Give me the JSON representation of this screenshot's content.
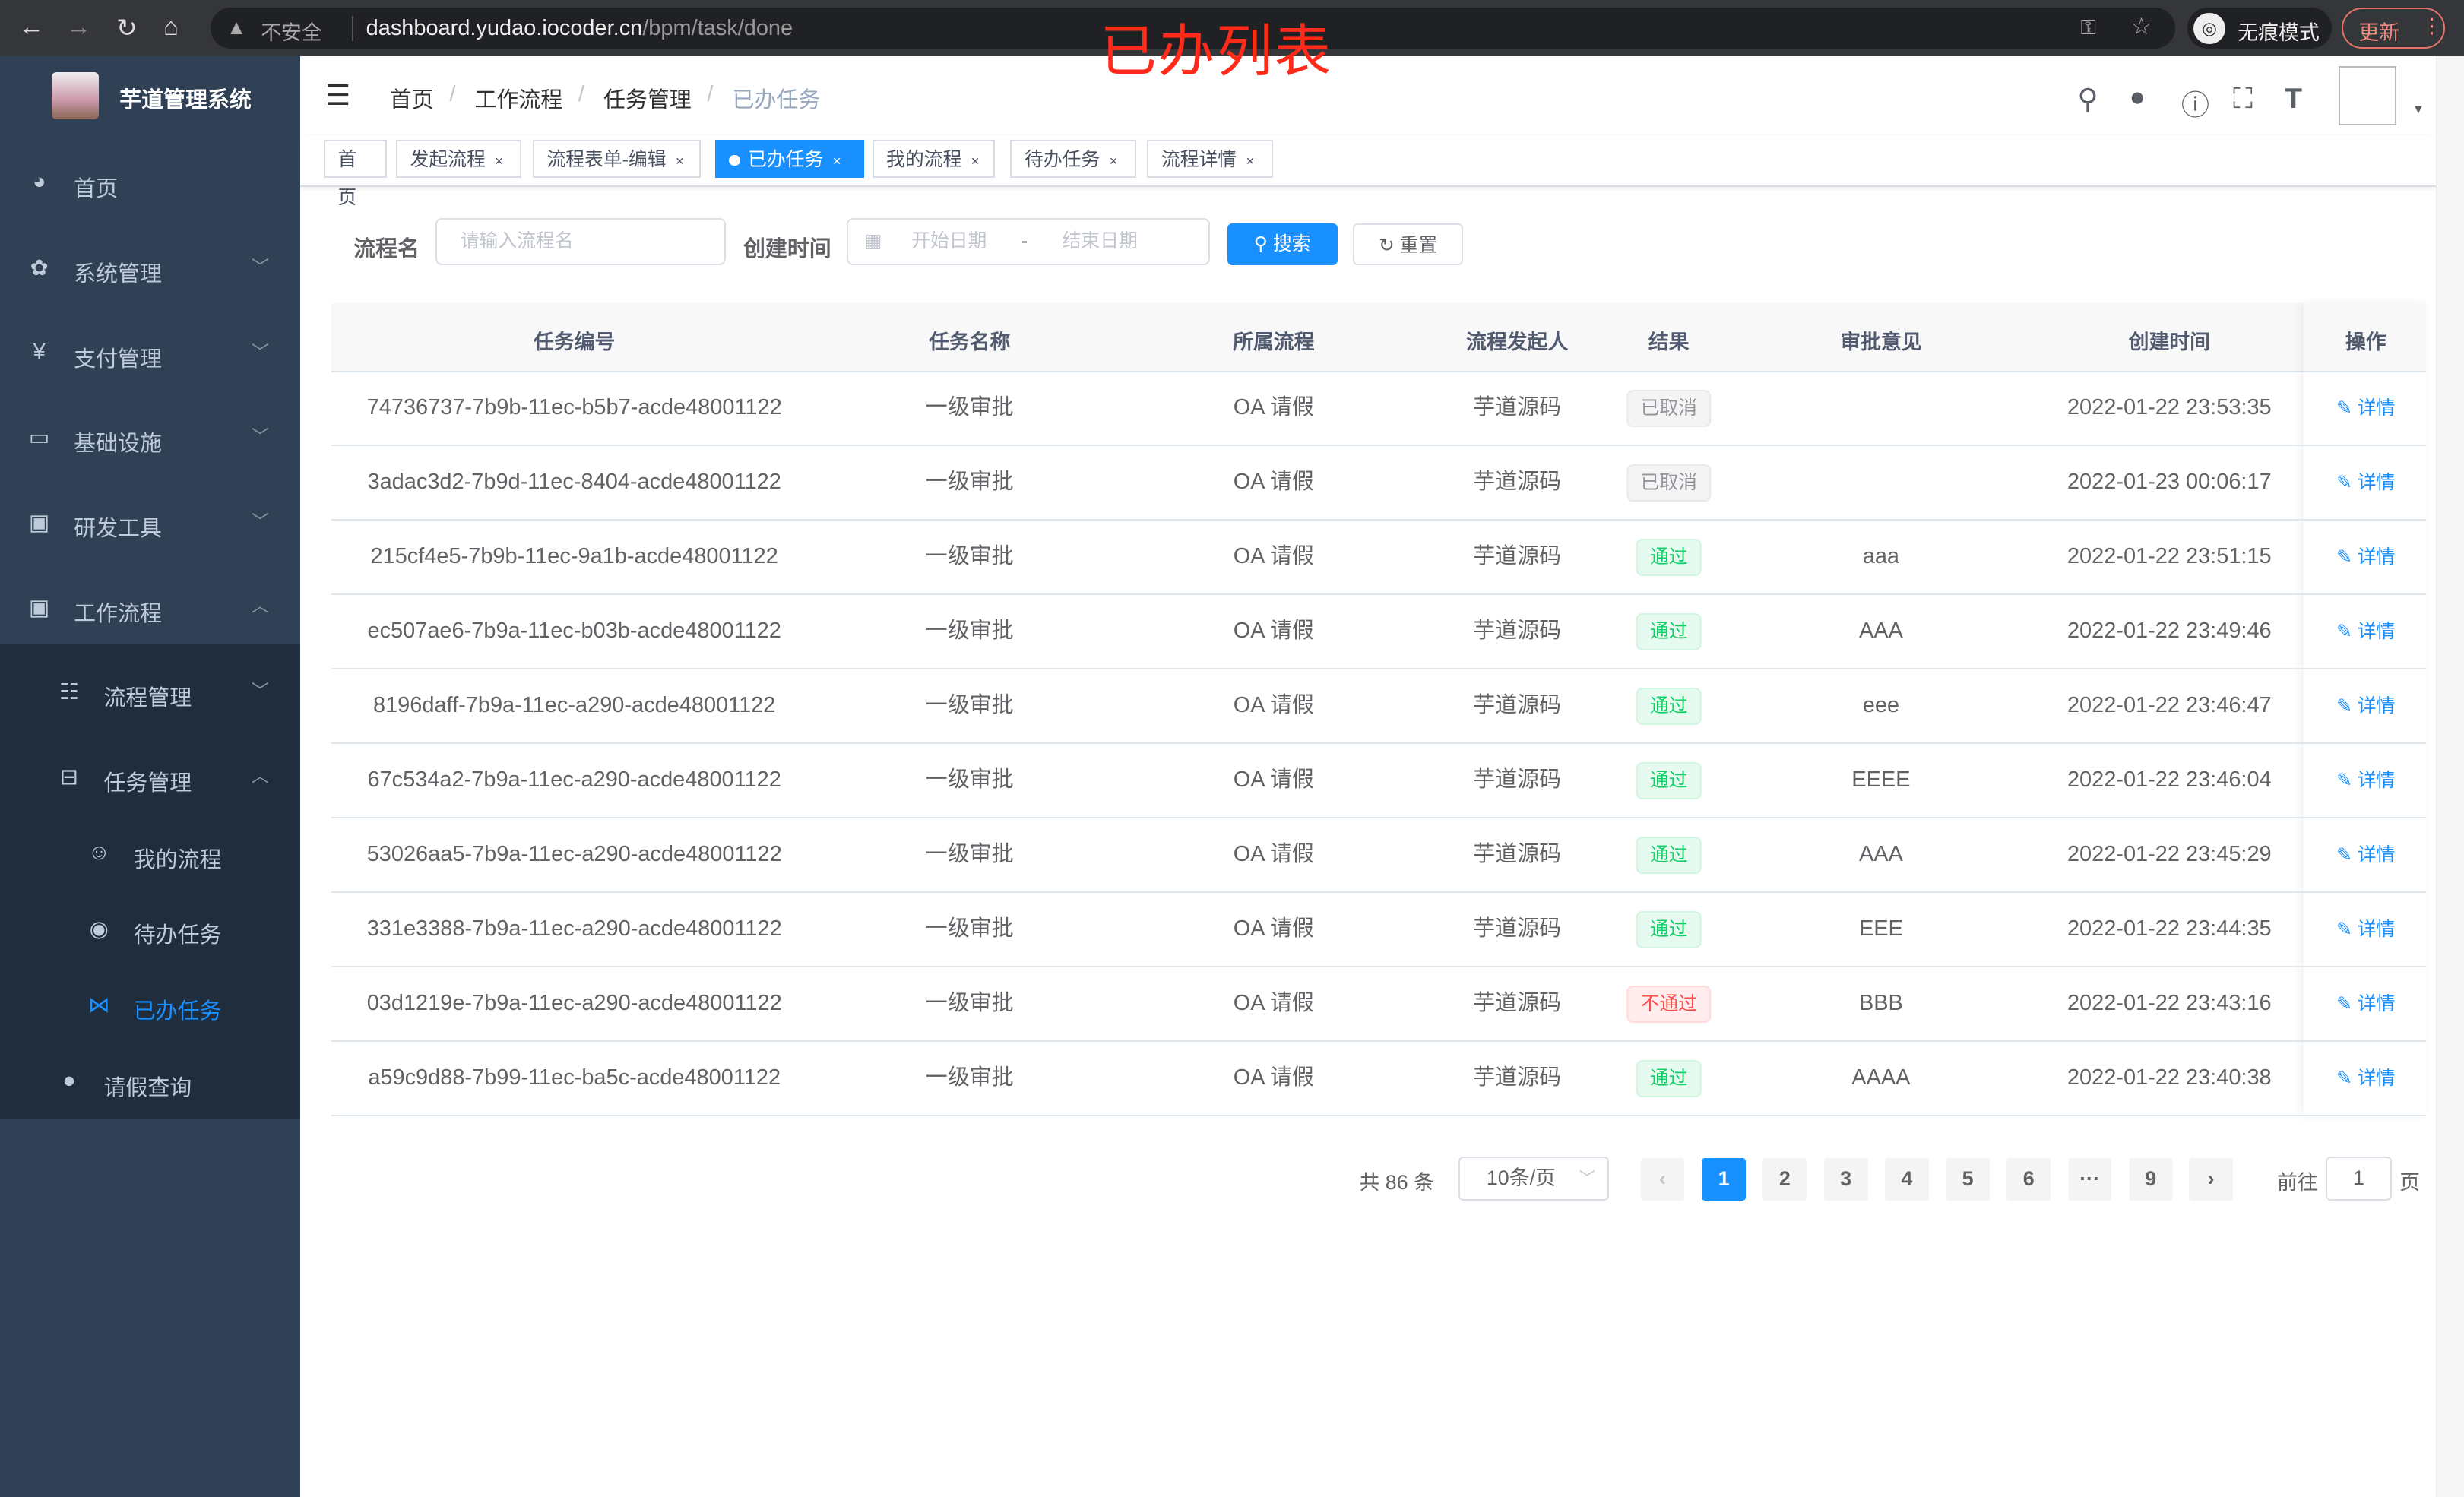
{
  "browser": {
    "insecure": "不安全",
    "url_host": "dashboard.yudao.iocoder.cn",
    "url_path": "/bpm/task/done",
    "incognito": "无痕模式",
    "update": "更新"
  },
  "overlay_title": "已办列表",
  "sidebar": {
    "title": "芋道管理系统",
    "items": [
      {
        "label": "首页",
        "icon": "dashboard-icon"
      },
      {
        "label": "系统管理",
        "icon": "gear-icon"
      },
      {
        "label": "支付管理",
        "icon": "yen-icon"
      },
      {
        "label": "基础设施",
        "icon": "monitor-icon"
      },
      {
        "label": "研发工具",
        "icon": "toolbox-icon"
      },
      {
        "label": "工作流程",
        "icon": "toolbox-icon"
      }
    ],
    "sub": [
      {
        "label": "流程管理",
        "icon": "list-icon"
      },
      {
        "label": "任务管理",
        "icon": "tree-icon"
      }
    ],
    "subsub": [
      {
        "label": "我的流程",
        "icon": "chat-icon"
      },
      {
        "label": "待办任务",
        "icon": "eye-icon"
      },
      {
        "label": "已办任务",
        "icon": "fish-icon"
      }
    ],
    "leave": {
      "label": "请假查询",
      "icon": "user-icon"
    }
  },
  "breadcrumb": [
    "首页",
    "工作流程",
    "任务管理",
    "已办任务"
  ],
  "tags": [
    "首页",
    "发起流程",
    "流程表单-编辑",
    "已办任务",
    "我的流程",
    "待办任务",
    "流程详情"
  ],
  "search": {
    "name_label": "流程名",
    "name_placeholder": "请输入流程名",
    "time_label": "创建时间",
    "start_placeholder": "开始日期",
    "range_sep": "-",
    "end_placeholder": "结束日期",
    "search_btn": "搜索",
    "reset_btn": "重置"
  },
  "table": {
    "headers": [
      "任务编号",
      "任务名称",
      "所属流程",
      "流程发起人",
      "结果",
      "审批意见",
      "创建时间",
      "操作"
    ],
    "rows": [
      [
        "74736737-7b9b-11ec-b5b7-acde48001122",
        "一级审批",
        "OA 请假",
        "芋道源码",
        "已取消",
        "",
        "2022-01-22 23:53:35",
        "详情"
      ],
      [
        "3adac3d2-7b9d-11ec-8404-acde48001122",
        "一级审批",
        "OA 请假",
        "芋道源码",
        "已取消",
        "",
        "2022-01-23 00:06:17",
        "详情"
      ],
      [
        "215cf4e5-7b9b-11ec-9a1b-acde48001122",
        "一级审批",
        "OA 请假",
        "芋道源码",
        "通过",
        "aaa",
        "2022-01-22 23:51:15",
        "详情"
      ],
      [
        "ec507ae6-7b9a-11ec-b03b-acde48001122",
        "一级审批",
        "OA 请假",
        "芋道源码",
        "通过",
        "AAA",
        "2022-01-22 23:49:46",
        "详情"
      ],
      [
        "8196daff-7b9a-11ec-a290-acde48001122",
        "一级审批",
        "OA 请假",
        "芋道源码",
        "通过",
        "eee",
        "2022-01-22 23:46:47",
        "详情"
      ],
      [
        "67c534a2-7b9a-11ec-a290-acde48001122",
        "一级审批",
        "OA 请假",
        "芋道源码",
        "通过",
        "EEEE",
        "2022-01-22 23:46:04",
        "详情"
      ],
      [
        "53026aa5-7b9a-11ec-a290-acde48001122",
        "一级审批",
        "OA 请假",
        "芋道源码",
        "通过",
        "AAA",
        "2022-01-22 23:45:29",
        "详情"
      ],
      [
        "331e3388-7b9a-11ec-a290-acde48001122",
        "一级审批",
        "OA 请假",
        "芋道源码",
        "通过",
        "EEE",
        "2022-01-22 23:44:35",
        "详情"
      ],
      [
        "03d1219e-7b9a-11ec-a290-acde48001122",
        "一级审批",
        "OA 请假",
        "芋道源码",
        "不通过",
        "BBB",
        "2022-01-22 23:43:16",
        "详情"
      ],
      [
        "a59c9d88-7b99-11ec-ba5c-acde48001122",
        "一级审批",
        "OA 请假",
        "芋道源码",
        "通过",
        "AAAA",
        "2022-01-22 23:40:38",
        "详情"
      ]
    ]
  },
  "result_colors": {
    "已取消": "#909399",
    "通过": "#13ce66",
    "不通过": "#ff4949"
  },
  "pagination": {
    "total": "共 86 条",
    "page_size": "10条/页",
    "pages": [
      "1",
      "2",
      "3",
      "4",
      "5",
      "6",
      "···",
      "9"
    ],
    "current": "1",
    "goto_label": "前往",
    "goto_value": "1",
    "page_unit": "页"
  },
  "accent": "#1890ff"
}
